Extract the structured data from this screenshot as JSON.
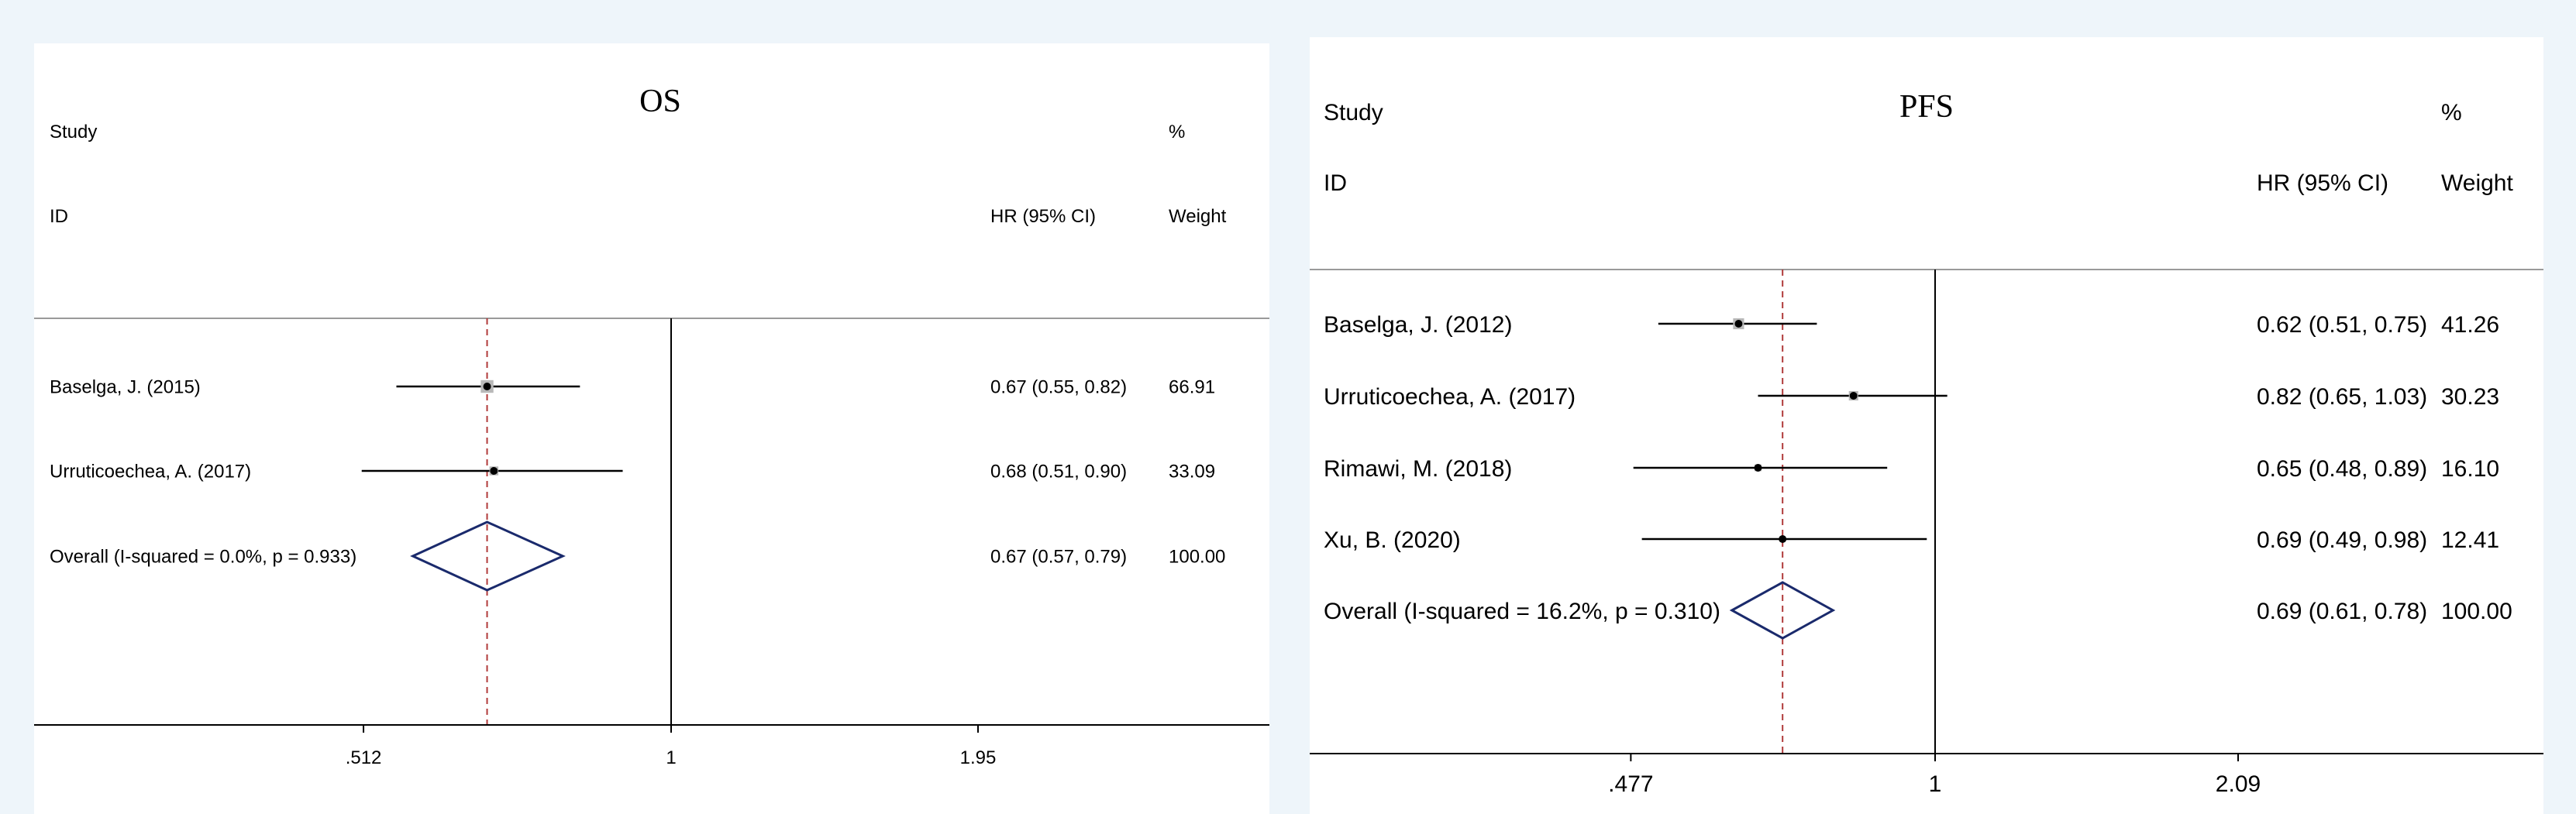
{
  "chart_data": [
    {
      "type": "forest",
      "title": "OS",
      "headers": {
        "study_line1": "Study",
        "study_line2": "ID",
        "hr": "HR (95% CI)",
        "weight_line1": "%",
        "weight_line2": "Weight"
      },
      "scale": "log",
      "xticks": [
        ".512",
        "1",
        "1.95"
      ],
      "reference_line": 1,
      "overall_line": 0.67,
      "studies": [
        {
          "label": "Baselga, J. (2015)",
          "hr": 0.67,
          "lo": 0.55,
          "hi": 0.82,
          "hr_text": "0.67 (0.55, 0.82)",
          "weight": 66.91,
          "weight_text": "66.91"
        },
        {
          "label": "Urruticoechea, A. (2017)",
          "hr": 0.68,
          "lo": 0.51,
          "hi": 0.9,
          "hr_text": "0.68 (0.51, 0.90)",
          "weight": 33.09,
          "weight_text": "33.09"
        }
      ],
      "overall": {
        "label": "Overall  (I-squared = 0.0%, p = 0.933)",
        "hr": 0.67,
        "lo": 0.57,
        "hi": 0.79,
        "hr_text": "0.67 (0.57, 0.79)",
        "weight_text": "100.00"
      }
    },
    {
      "type": "forest",
      "title": "PFS",
      "headers": {
        "study_line1": "Study",
        "study_line2": "ID",
        "hr": "HR (95% CI)",
        "weight_line1": "%",
        "weight_line2": "Weight"
      },
      "scale": "log",
      "xticks": [
        ".477",
        "1",
        "2.09"
      ],
      "reference_line": 1,
      "overall_line": 0.69,
      "studies": [
        {
          "label": "Baselga, J. (2012)",
          "hr": 0.62,
          "lo": 0.51,
          "hi": 0.75,
          "hr_text": "0.62 (0.51, 0.75)",
          "weight": 41.26,
          "weight_text": "41.26"
        },
        {
          "label": "Urruticoechea, A. (2017)",
          "hr": 0.82,
          "lo": 0.65,
          "hi": 1.03,
          "hr_text": "0.82 (0.65, 1.03)",
          "weight": 30.23,
          "weight_text": "30.23"
        },
        {
          "label": "Rimawi, M. (2018)",
          "hr": 0.65,
          "lo": 0.48,
          "hi": 0.89,
          "hr_text": "0.65 (0.48, 0.89)",
          "weight": 16.1,
          "weight_text": "16.10"
        },
        {
          "label": "Xu, B. (2020)",
          "hr": 0.69,
          "lo": 0.49,
          "hi": 0.98,
          "hr_text": "0.69 (0.49, 0.98)",
          "weight": 12.41,
          "weight_text": "12.41"
        }
      ],
      "overall": {
        "label": "Overall  (I-squared = 16.2%, p = 0.310)",
        "hr": 0.69,
        "lo": 0.61,
        "hi": 0.78,
        "hr_text": "0.69 (0.61, 0.78)",
        "weight_text": "100.00"
      }
    }
  ],
  "colors": {
    "diamond": "#1a2a6c",
    "overall_line": "#b03a3a",
    "box": "#b8b8b8",
    "line": "#000000"
  }
}
